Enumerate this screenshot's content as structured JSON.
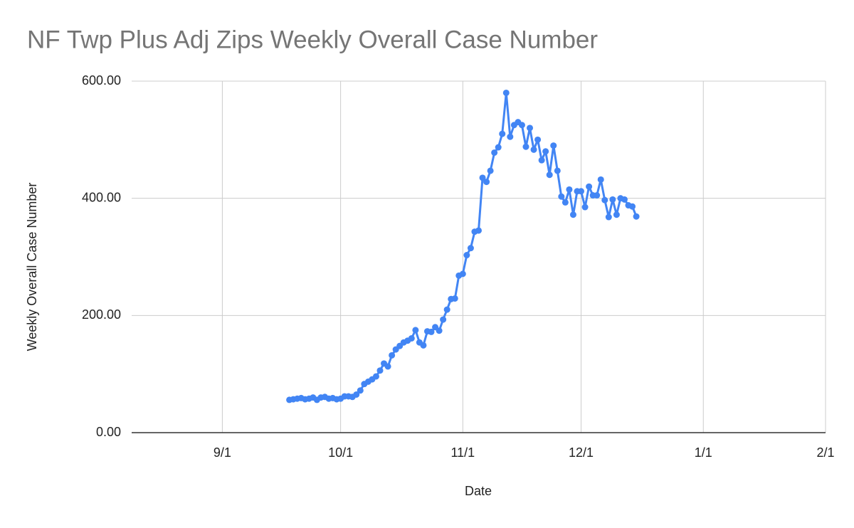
{
  "chart_data": {
    "type": "line",
    "title": "NF Twp Plus Adj Zips Weekly Overall Case Number",
    "xlabel": "Date",
    "ylabel": "Weekly Overall Case Number",
    "color": "#4285f4",
    "grid": true,
    "xlim": [
      "8/9",
      "2/1"
    ],
    "xticks": [
      "9/1",
      "10/1",
      "11/1",
      "12/1",
      "1/1",
      "2/1"
    ],
    "ylim": [
      0,
      600
    ],
    "yticks": [
      {
        "value": 0,
        "label": "0.00"
      },
      {
        "value": 200,
        "label": "200.00"
      },
      {
        "value": 400,
        "label": "400.00"
      },
      {
        "value": 600,
        "label": "600.00"
      }
    ],
    "x": [
      "9/18",
      "9/19",
      "9/20",
      "9/21",
      "9/22",
      "9/23",
      "9/24",
      "9/25",
      "9/26",
      "9/27",
      "9/28",
      "9/29",
      "9/30",
      "10/1",
      "10/2",
      "10/3",
      "10/4",
      "10/5",
      "10/6",
      "10/7",
      "10/8",
      "10/9",
      "10/10",
      "10/11",
      "10/12",
      "10/13",
      "10/14",
      "10/15",
      "10/16",
      "10/17",
      "10/18",
      "10/19",
      "10/20",
      "10/21",
      "10/22",
      "10/23",
      "10/24",
      "10/25",
      "10/26",
      "10/27",
      "10/28",
      "10/29",
      "10/30",
      "10/31",
      "11/1",
      "11/2",
      "11/3",
      "11/4",
      "11/5",
      "11/6",
      "11/7",
      "11/8",
      "11/9",
      "11/10",
      "11/11",
      "11/12",
      "11/13",
      "11/14",
      "11/15",
      "11/16",
      "11/17",
      "11/18",
      "11/19",
      "11/20",
      "11/21",
      "11/22",
      "11/23",
      "11/24",
      "11/25",
      "11/26",
      "11/27",
      "11/28",
      "11/29",
      "11/30",
      "12/1",
      "12/2",
      "12/3",
      "12/4",
      "12/5",
      "12/6",
      "12/7",
      "12/8",
      "12/9",
      "12/10",
      "12/11",
      "12/12",
      "12/13",
      "12/14",
      "12/15"
    ],
    "values": [
      56,
      57,
      58,
      59,
      57,
      58,
      60,
      56,
      60,
      61,
      58,
      59,
      57,
      58,
      62,
      62,
      61,
      65,
      72,
      83,
      87,
      91,
      96,
      106,
      118,
      113,
      132,
      142,
      148,
      154,
      157,
      161,
      175,
      154,
      149,
      173,
      172,
      180,
      174,
      193,
      210,
      228,
      229,
      268,
      271,
      303,
      315,
      343,
      345,
      435,
      428,
      447,
      478,
      487,
      510,
      580,
      505,
      525,
      530,
      525,
      488,
      520,
      483,
      500,
      465,
      480,
      440,
      490,
      447,
      403,
      393,
      415,
      372,
      412,
      412,
      385,
      420,
      405,
      405,
      432,
      397,
      368,
      398,
      372,
      400,
      398,
      388,
      386,
      369
    ]
  }
}
